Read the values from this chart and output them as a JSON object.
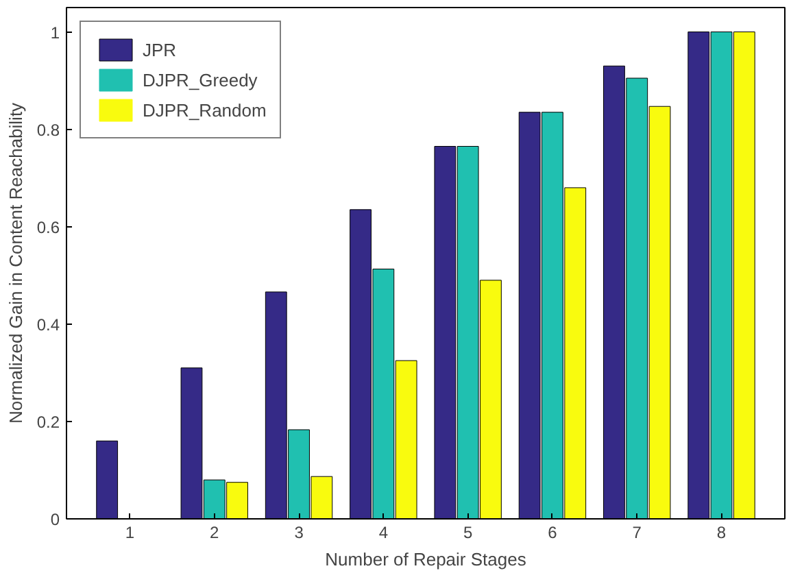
{
  "chart_data": {
    "type": "bar",
    "xlabel": "Number of Repair Stages",
    "ylabel": "Normalized Gain in Content Reachability",
    "categories": [
      "1",
      "2",
      "3",
      "4",
      "5",
      "6",
      "7",
      "8"
    ],
    "series": [
      {
        "name": "JPR",
        "color": "#352a87",
        "values": [
          0.16,
          0.31,
          0.466,
          0.635,
          0.765,
          0.835,
          0.93,
          1.0
        ]
      },
      {
        "name": "DJPR_Greedy",
        "color": "#20c0b0",
        "values": [
          0.0,
          0.08,
          0.183,
          0.513,
          0.765,
          0.835,
          0.905,
          1.0
        ]
      },
      {
        "name": "DJPR_Random",
        "color": "#f9fb0e",
        "values": [
          0.0,
          0.075,
          0.087,
          0.325,
          0.49,
          0.68,
          0.847,
          1.0
        ]
      }
    ],
    "ylim": [
      0,
      1.05
    ],
    "yticks": [
      0,
      0.2,
      0.4,
      0.6,
      0.8,
      1
    ],
    "grid": false,
    "legend": "top left"
  }
}
